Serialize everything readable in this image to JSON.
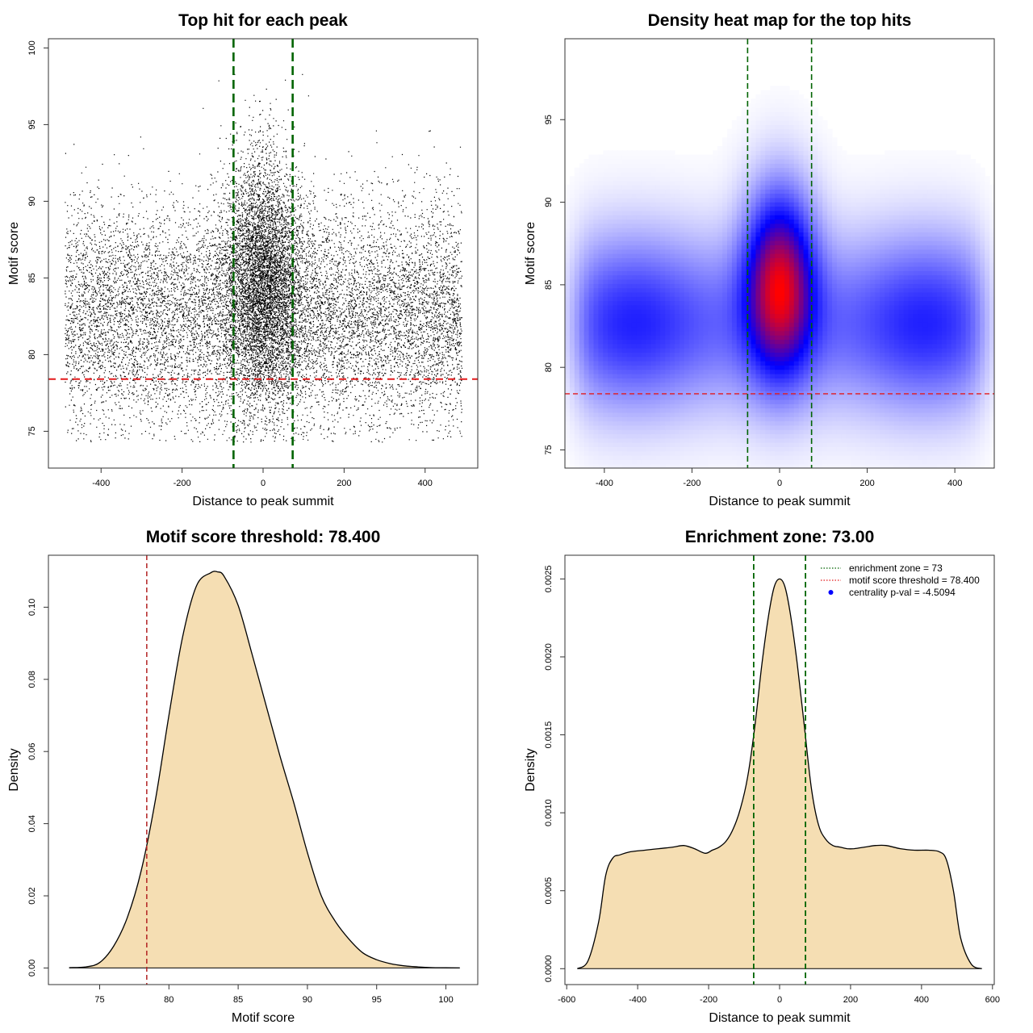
{
  "chart_data": [
    {
      "id": "scatter",
      "type": "scatter",
      "title": "Top hit for each peak",
      "xlabel": "Distance to peak summit",
      "ylabel": "Motif score",
      "xlim": [
        -530,
        530
      ],
      "ylim": [
        72.6,
        100.6
      ],
      "xticks": [
        -400,
        -200,
        0,
        200,
        400
      ],
      "yticks": [
        75,
        80,
        85,
        90,
        95,
        100
      ],
      "xtick_labels": [
        "-400",
        "-200",
        "0",
        "200",
        "400"
      ],
      "ytick_labels": [
        "75",
        "80",
        "85",
        "90",
        "95",
        "100"
      ],
      "zone_lines_x": [
        -73,
        73
      ],
      "threshold_y": 78.4,
      "zone_color": "#006400",
      "threshold_color": "#e31a1c",
      "point_color": "#000000",
      "distribution": {
        "x_range": [
          -490,
          490
        ],
        "background_mean": 82.7,
        "background_sd": 3.6,
        "background_count": 11000,
        "central_mean": 85.0,
        "central_sd": 4.0,
        "central_sd_x": 48,
        "central_count": 5500
      }
    },
    {
      "id": "heatmap",
      "type": "heatmap",
      "title": "Density heat map for the top hits",
      "xlabel": "Distance to peak summit",
      "ylabel": "Motif score",
      "xlim": [
        -490,
        490
      ],
      "ylim": [
        73.9,
        99.9
      ],
      "xticks": [
        -400,
        -200,
        0,
        200,
        400
      ],
      "yticks": [
        75,
        80,
        85,
        90,
        95
      ],
      "xtick_labels": [
        "-400",
        "-200",
        "0",
        "200",
        "400"
      ],
      "ytick_labels": [
        "75",
        "80",
        "85",
        "90",
        "95"
      ],
      "zone_lines_x": [
        -73,
        73
      ],
      "threshold_y": 78.4,
      "zone_color": "#006400",
      "threshold_color": "#e31a1c",
      "palette": [
        "#ffffff",
        "#0000ff",
        "#ff0000"
      ],
      "grid_cols": 90,
      "grid_rows": 100,
      "density": {
        "band_mean": 82.7,
        "band_sd": 3.2,
        "band_x_extent": 460,
        "peak_mean": 85.0,
        "peak_sd": 3.4,
        "peak_sd_x": 50,
        "peak_weight": 1.45
      }
    },
    {
      "id": "score_density",
      "type": "area",
      "title": "Motif score threshold: 78.400",
      "xlabel": "Motif score",
      "ylabel": "Density",
      "xlim": [
        71.3,
        102.3
      ],
      "ylim": [
        -0.0046,
        0.1144
      ],
      "xticks": [
        75,
        80,
        85,
        90,
        95,
        100
      ],
      "yticks": [
        0.0,
        0.02,
        0.04,
        0.06,
        0.08,
        0.1
      ],
      "xtick_labels": [
        "75",
        "80",
        "85",
        "90",
        "95",
        "100"
      ],
      "ytick_labels": [
        "0.00",
        "0.02",
        "0.04",
        "0.06",
        "0.08",
        "0.10"
      ],
      "fill_color": "#f5deb3",
      "threshold_x": 78.4,
      "threshold_color": "#b22222",
      "x": [
        72.8,
        74,
        75,
        76,
        77,
        78,
        79,
        80,
        81,
        82,
        83,
        83.5,
        84,
        85,
        86,
        87,
        88,
        89,
        90,
        91,
        92,
        93,
        94,
        95,
        96,
        97,
        98,
        99,
        100,
        101
      ],
      "y": [
        0.0001,
        0.0003,
        0.0015,
        0.006,
        0.014,
        0.027,
        0.046,
        0.07,
        0.092,
        0.106,
        0.1095,
        0.1098,
        0.1085,
        0.1005,
        0.087,
        0.073,
        0.059,
        0.046,
        0.032,
        0.02,
        0.013,
        0.008,
        0.0042,
        0.0023,
        0.0012,
        0.0006,
        0.0003,
        0.0001,
        5e-05,
        0.0
      ]
    },
    {
      "id": "distance_density",
      "type": "area",
      "title": "Enrichment zone: 73.00",
      "xlabel": "Distance to peak summit",
      "ylabel": "Density",
      "xlim": [
        -605,
        605
      ],
      "ylim": [
        -0.000102,
        0.002652
      ],
      "xticks": [
        -600,
        -400,
        -200,
        0,
        200,
        400,
        600
      ],
      "yticks": [
        0.0,
        0.0005,
        0.001,
        0.0015,
        0.002,
        0.0025
      ],
      "xtick_labels": [
        "-600",
        "-400",
        "-200",
        "0",
        "200",
        "400",
        "600"
      ],
      "ytick_labels": [
        "0.0000",
        "0.0005",
        "0.0010",
        "0.0015",
        "0.0020",
        "0.0025"
      ],
      "fill_color": "#f5deb3",
      "zone_lines_x": [
        -73,
        73
      ],
      "zone_color": "#006400",
      "x": [
        -570,
        -540,
        -510,
        -490,
        -470,
        -450,
        -420,
        -380,
        -340,
        -300,
        -270,
        -240,
        -210,
        -190,
        -170,
        -150,
        -130,
        -110,
        -90,
        -70,
        -50,
        -30,
        -15,
        0,
        15,
        30,
        50,
        70,
        90,
        110,
        130,
        150,
        170,
        190,
        210,
        240,
        270,
        300,
        340,
        380,
        420,
        450,
        470,
        490,
        510,
        540,
        570
      ],
      "y": [
        0.0,
        5e-05,
        0.0003,
        0.0006,
        0.00071,
        0.00073,
        0.00075,
        0.00076,
        0.00077,
        0.00078,
        0.00079,
        0.00077,
        0.00074,
        0.00076,
        0.00078,
        0.00082,
        0.0009,
        0.00103,
        0.00123,
        0.00155,
        0.00195,
        0.00228,
        0.00245,
        0.0025,
        0.00245,
        0.00228,
        0.00195,
        0.00155,
        0.00115,
        0.00092,
        0.00083,
        0.00079,
        0.00078,
        0.00077,
        0.00077,
        0.00078,
        0.00079,
        0.00079,
        0.00077,
        0.00076,
        0.00076,
        0.00075,
        0.0007,
        0.0005,
        0.0002,
        3e-05,
        0.0
      ],
      "legend": [
        {
          "label": "enrichment zone = 73",
          "color": "#006400",
          "style": "dotted-line"
        },
        {
          "label": "motif score threshold = 78.400",
          "color": "#e31a1c",
          "style": "dotted-line"
        },
        {
          "label": "centrality p-val = -4.5094",
          "color": "#0000ff",
          "style": "point"
        }
      ]
    }
  ]
}
